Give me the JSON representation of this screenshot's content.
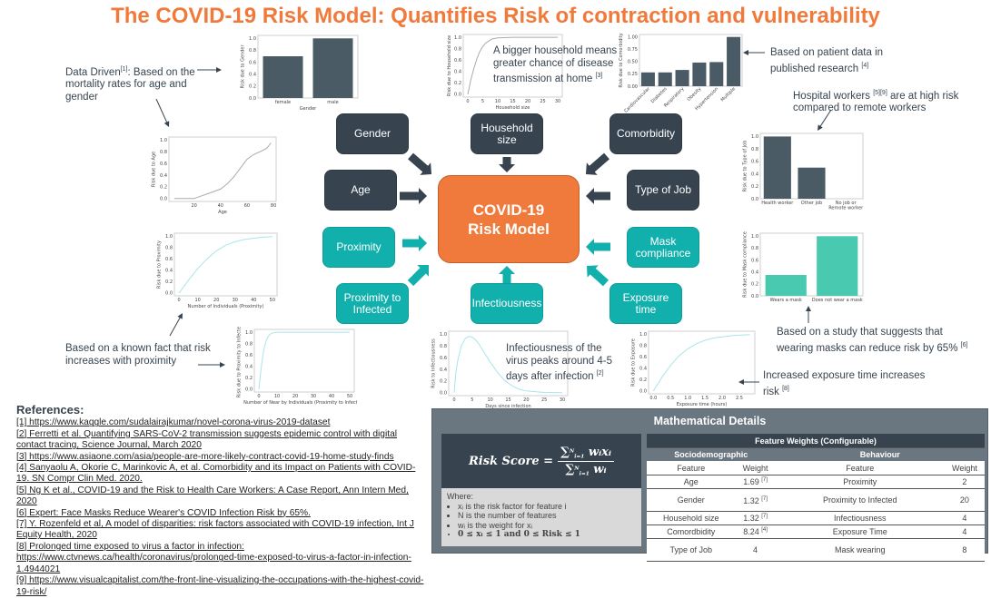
{
  "title": "The COVID-19 Risk Model: Quantifies Risk of contraction and vulnerability",
  "center_node": "COVID-19 Risk Model",
  "colors": {
    "title": "#f07a3c",
    "center": "#f07a3c",
    "sociodemographic": "#37444f",
    "behaviour": "#12b0ad",
    "bar": "#4b5b65",
    "mask_bar": "#48c9b0",
    "curve": "#a9e4ea",
    "age_curve": "#aaaaaa"
  },
  "nodes": {
    "gender": "Gender",
    "household": "Household size",
    "comorbidity": "Comorbidity",
    "age": "Age",
    "job": "Type of Job",
    "proximity": "Proximity",
    "mask": "Mask compliance",
    "proximity_infected": "Proximity to Infected",
    "infectiousness": "Infectiousness",
    "exposure": "Exposure time"
  },
  "notes": {
    "data_driven": "Data Driven",
    "data_driven_ref": "[1]",
    "data_driven_rest": ": Based on the mortality rates for age and gender",
    "household": "A bigger household means greater chance of disease transmission at home",
    "household_ref": "[3]",
    "comorbidity": "Based on patient data in published research",
    "comorbidity_ref": "[4]",
    "hospital_a": "Hospital workers",
    "hospital_ref": "[5][9]",
    "hospital_b": "are at high risk compared to remote workers",
    "proximity": "Based on a known fact that risk increases with proximity",
    "infectiousness": "Infectiousness of the virus peaks around 4-5 days after infection",
    "infectiousness_ref": "[2]",
    "mask": "Based on a study that suggests that wearing masks can reduce risk by 65%",
    "mask_ref": "[6]",
    "exposure": "Increased exposure time increases risk",
    "exposure_ref": "[8]"
  },
  "references": {
    "heading": "References:",
    "items": [
      "[1] https://www.kaggle.com/sudalairajkumar/novel-corona-virus-2019-dataset",
      "[2] Ferretti et al. Quantifying SARS-CoV-2 transmission suggests epidemic control with digital contact tracing, Science Journal, March 2020",
      "[3] https://www.asiaone.com/asia/people-are-more-likely-contract-covid-19-home-study-finds",
      "[4] Sanyaolu A, Okorie C, Marinkovic A, et al. Comorbidity and its Impact on Patients with COVID-19. SN Compr Clin Med. 2020.",
      "[5] Ng K et al., COVID-19 and the Risk to Health Care Workers: A Case Report, Ann Intern Med, 2020",
      "[6] Expert: Face Masks Reduce Wearer's COVID Infection Risk by 65%.",
      "[7] Y. Rozenfeld et al, A model of disparities: risk factors associated with COVID-19 infection, Int J Equity Health, 2020",
      "[8] Prolonged time exposed to virus a factor in infection: https://www.ctvnews.ca/health/coronavirus/prolonged-time-exposed-to-virus-a-factor-in-infection-1.4944021",
      "[9] https://www.visualcapitalist.com/the-front-line-visualizing-the-occupations-with-the-highest-covid-19-risk/"
    ]
  },
  "math": {
    "title": "Mathematical Details",
    "formula": {
      "lhs": "Risk Score =",
      "sum": "∑",
      "lower": "i=1",
      "upper": "N",
      "numerator": "wᵢxᵢ",
      "denominator": "wᵢ"
    },
    "where_label": "Where:",
    "where_items": [
      "xᵢ is the risk factor for feature i",
      "N is the number of features",
      "wᵢ is the weight for xᵢ",
      "0 ≤ xᵢ ≤ 1 and 0 ≤ Risk ≤ 1"
    ],
    "table": {
      "title": "Feature Weights (Configurable)",
      "groups": [
        "Sociodemographic",
        "Behaviour"
      ],
      "columns": [
        "Feature",
        "Weight",
        "Feature",
        "Weight"
      ],
      "rows": [
        {
          "f1": "Age",
          "w1": "1.69",
          "r1": "[7]",
          "f2": "Proximity",
          "w2": "2"
        },
        {
          "f1": "Gender",
          "w1": "1.32",
          "r1": "[7]",
          "f2": "Proximity to Infected",
          "w2": "20"
        },
        {
          "f1": "Household size",
          "w1": "1.32",
          "r1": "[7]",
          "f2": "Infectiousness",
          "w2": "4"
        },
        {
          "f1": "Comordbidity",
          "w1": "8.24",
          "r1": "[4]",
          "f2": "Exposure Time",
          "w2": "4"
        },
        {
          "f1": "Type of Job",
          "w1": "4",
          "r1": "",
          "f2": "Mask wearing",
          "w2": "8"
        }
      ]
    }
  },
  "chart_data": [
    {
      "type": "bar",
      "categories": [
        "female",
        "male"
      ],
      "values": [
        0.7,
        1.0
      ],
      "xlabel": "Gender",
      "ylabel": "Risk due to Gender",
      "ylim": [
        0,
        1.05
      ],
      "yticks": [
        "0.0",
        "0.2",
        "0.4",
        "0.6",
        "0.8",
        "1.0"
      ],
      "color": "#4b5b65"
    },
    {
      "type": "line",
      "x": [
        0,
        1,
        2,
        3,
        4,
        5,
        6,
        8,
        10,
        15,
        20,
        30
      ],
      "y": [
        0,
        0.25,
        0.45,
        0.62,
        0.75,
        0.84,
        0.9,
        0.97,
        0.99,
        1,
        1,
        1
      ],
      "xlabel": "Household size",
      "ylabel": "Risk due to Household size",
      "xlim": [
        -1.5,
        31.5
      ],
      "ylim": [
        -0.05,
        1.05
      ],
      "xticks": [
        "0",
        "5",
        "10",
        "15",
        "20",
        "25",
        "30"
      ],
      "yticks": [
        "0.0",
        "0.2",
        "0.4",
        "0.6",
        "0.8",
        "1.0"
      ],
      "color": "#aaaaaa"
    },
    {
      "type": "bar",
      "categories": [
        "Cardiovascular",
        "Diabetes",
        "Respiratory",
        "Obesity",
        "Hypertension",
        "Multiple"
      ],
      "values": [
        0.28,
        0.28,
        0.33,
        0.48,
        0.49,
        1.0
      ],
      "xlabel": "",
      "ylabel": "Risk due to Comorbidity",
      "ylim": [
        0,
        1.05
      ],
      "yticks": [
        "0.00",
        "0.25",
        "0.50",
        "0.75",
        "1.00"
      ],
      "color": "#4b5b65"
    },
    {
      "type": "line",
      "x": [
        5,
        10,
        20,
        25,
        30,
        35,
        40,
        45,
        50,
        55,
        60,
        65,
        70,
        75,
        78
      ],
      "y": [
        0,
        0,
        0,
        0.04,
        0.08,
        0.12,
        0.16,
        0.25,
        0.37,
        0.52,
        0.67,
        0.75,
        0.8,
        0.86,
        0.95
      ],
      "xlabel": "Age",
      "ylabel": "Risk due to Age",
      "xlim": [
        1,
        82
      ],
      "ylim": [
        -0.05,
        1.05
      ],
      "xticks": [
        "20",
        "40",
        "60",
        "80"
      ],
      "yticks": [
        "0.0",
        "0.2",
        "0.4",
        "0.6",
        "0.8",
        "1.0"
      ],
      "color": "#aaaaaa"
    },
    {
      "type": "bar",
      "categories": [
        "Health worker",
        "Other job",
        "No job or\nRemote worker"
      ],
      "values": [
        1.0,
        0.5,
        0
      ],
      "xlabel": "",
      "ylabel": "Risk due to Type of Job",
      "ylim": [
        0,
        1.05
      ],
      "yticks": [
        "0.0",
        "0.2",
        "0.4",
        "0.6",
        "0.8",
        "1.0"
      ],
      "color": "#4b5b65"
    },
    {
      "type": "line",
      "x": [
        0,
        5,
        10,
        15,
        20,
        25,
        30,
        35,
        40,
        45,
        50
      ],
      "y": [
        0,
        0.22,
        0.43,
        0.6,
        0.74,
        0.84,
        0.9,
        0.94,
        0.96,
        0.98,
        0.99
      ],
      "xlabel": "Number of Individuals (Proximity)",
      "ylabel": "Risk due to Proximity",
      "xlim": [
        -2.5,
        52.5
      ],
      "ylim": [
        -0.05,
        1.05
      ],
      "xticks": [
        "0",
        "10",
        "20",
        "30",
        "40",
        "50"
      ],
      "yticks": [
        "0.0",
        "0.2",
        "0.4",
        "0.6",
        "0.8",
        "1.0"
      ],
      "color": "#a9e4ea"
    },
    {
      "type": "bar",
      "categories": [
        "Wears a mask",
        "Does not wear a mask"
      ],
      "values": [
        0.35,
        1.0
      ],
      "xlabel": "",
      "ylabel": "Risk due to Mask compliance",
      "ylim": [
        0,
        1.05
      ],
      "yticks": [
        "0.0",
        "0.2",
        "0.4",
        "0.6",
        "0.8",
        "1.0"
      ],
      "color": "#48c9b0"
    },
    {
      "type": "line",
      "x": [
        0,
        1,
        2,
        3,
        4,
        5,
        6,
        7,
        8,
        10,
        20,
        30,
        40,
        50
      ],
      "y": [
        0,
        0.3,
        0.55,
        0.73,
        0.85,
        0.92,
        0.96,
        0.98,
        0.99,
        1,
        1,
        1,
        1,
        1
      ],
      "xlabel": "Number of Near by Individuals (Proximity to Infected)",
      "ylabel": "Risk due to Proximity to Infected",
      "xlim": [
        -2.5,
        52.5
      ],
      "ylim": [
        -0.05,
        1.05
      ],
      "xticks": [
        "0",
        "10",
        "20",
        "30",
        "40",
        "50"
      ],
      "yticks": [
        "0.0",
        "0.2",
        "0.4",
        "0.6",
        "0.8",
        "1.0"
      ],
      "color": "#a9e4ea"
    },
    {
      "type": "line",
      "x": [
        0,
        0.5,
        1,
        2,
        3,
        4,
        5,
        6,
        7,
        8,
        10,
        12,
        14,
        16,
        18,
        20,
        25,
        30
      ],
      "y": [
        0,
        0.35,
        0.55,
        0.8,
        0.92,
        0.96,
        0.95,
        0.9,
        0.82,
        0.72,
        0.52,
        0.35,
        0.21,
        0.12,
        0.06,
        0.03,
        0.005,
        0
      ],
      "xlabel": "Days since infection",
      "ylabel": "Risk to Infectiousness",
      "xlim": [
        -1.5,
        31.5
      ],
      "ylim": [
        -0.05,
        1.05
      ],
      "xticks": [
        "0",
        "5",
        "10",
        "15",
        "20",
        "25",
        "30"
      ],
      "yticks": [
        "0.0",
        "0.2",
        "0.4",
        "0.6",
        "0.8",
        "1.0"
      ],
      "color": "#a9e4ea"
    },
    {
      "type": "line",
      "x": [
        0,
        0.25,
        0.5,
        0.75,
        1,
        1.25,
        1.5,
        1.75,
        2,
        2.25,
        2.5,
        2.8
      ],
      "y": [
        0,
        0.24,
        0.45,
        0.62,
        0.74,
        0.83,
        0.89,
        0.93,
        0.95,
        0.97,
        0.98,
        0.99
      ],
      "xlabel": "Exposure time (hours)",
      "ylabel": "Risk due to Exposure",
      "xlim": [
        -0.14,
        2.95
      ],
      "ylim": [
        -0.05,
        1.05
      ],
      "xticks": [
        "0.0",
        "0.5",
        "1.0",
        "1.5",
        "2.0",
        "2.5"
      ],
      "yticks": [
        "0.0",
        "0.2",
        "0.4",
        "0.6",
        "0.8",
        "1.0"
      ],
      "color": "#a9e4ea"
    }
  ]
}
